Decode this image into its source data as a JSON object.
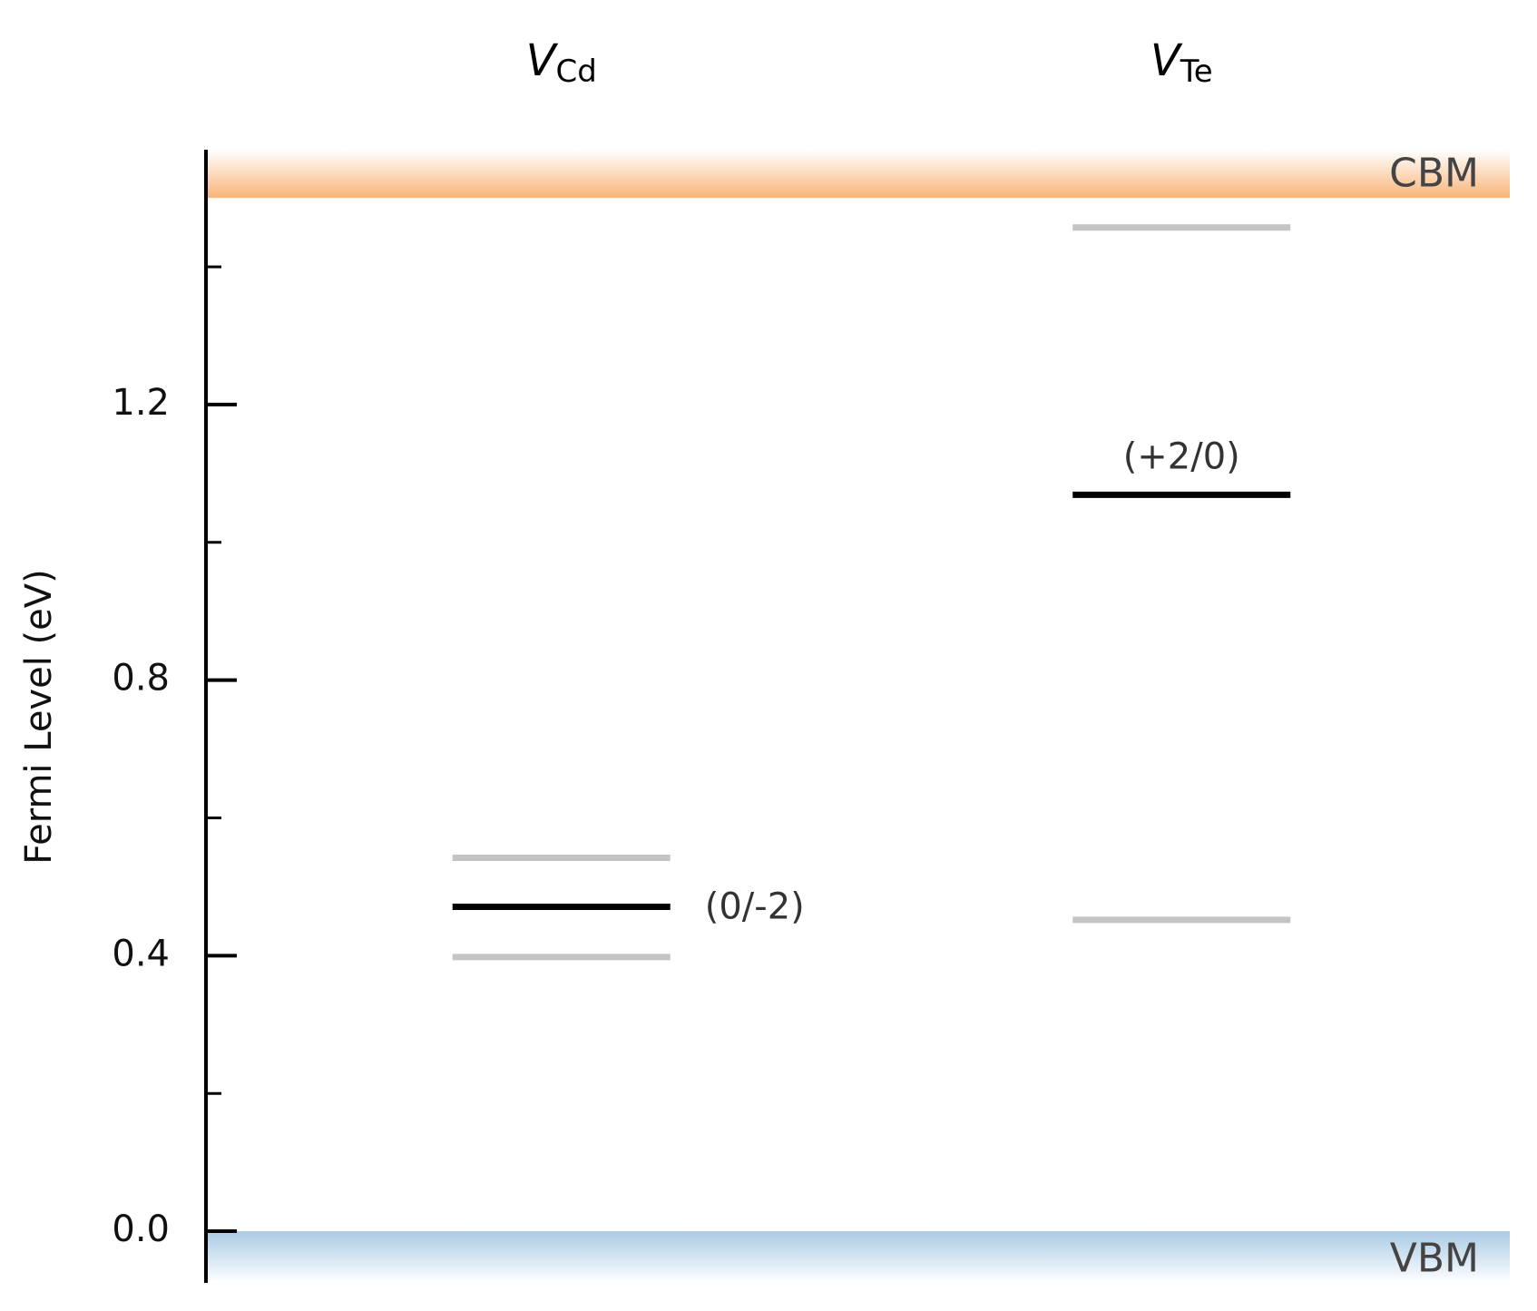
{
  "chart_data": {
    "type": "levels",
    "y_label": "Fermi Level (eV)",
    "ylim": [
      -0.075,
      1.57
    ],
    "yticks": [
      {
        "value": 0,
        "label": "0.0"
      },
      0.4,
      0.8,
      1.2
    ],
    "minor_yticks": [
      0.2,
      0.6,
      1.0,
      1.4
    ],
    "cbm": {
      "label": "CBM",
      "value": 1.5,
      "color": "#f8b57a"
    },
    "vbm": {
      "label": "VBM",
      "value": 0,
      "color": "#a9cbe5"
    },
    "level_color": "#000000",
    "other_level_color": "#c4c4c4",
    "defects": [
      {
        "symbol": "V",
        "subscript": "Cd",
        "levels": [
          {
            "value": 0.471,
            "label": "(0/-2)",
            "label_position": "right"
          }
        ],
        "other_levels": [
          0.542,
          0.398
        ]
      },
      {
        "symbol": "V",
        "subscript": "Te",
        "levels": [
          {
            "value": 1.069,
            "label": "(+2/0)",
            "label_position": "above"
          }
        ],
        "other_levels": [
          1.457,
          0.452
        ]
      }
    ]
  }
}
